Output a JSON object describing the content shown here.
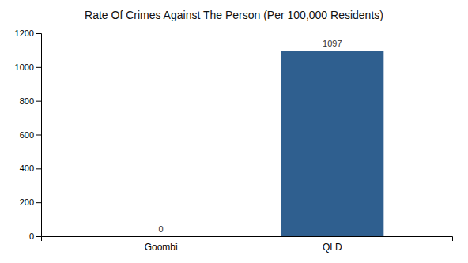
{
  "chart_data": {
    "type": "bar",
    "title": "Rate Of Crimes Against The Person (Per 100,000 Residents)",
    "categories": [
      "Goombi",
      "QLD"
    ],
    "values": [
      0,
      1097
    ],
    "color": "#2f5f8f",
    "ylim": [
      0,
      1200
    ],
    "yticks": [
      0,
      200,
      400,
      600,
      800,
      1000,
      1200
    ],
    "grid": false,
    "data_labels": true
  }
}
